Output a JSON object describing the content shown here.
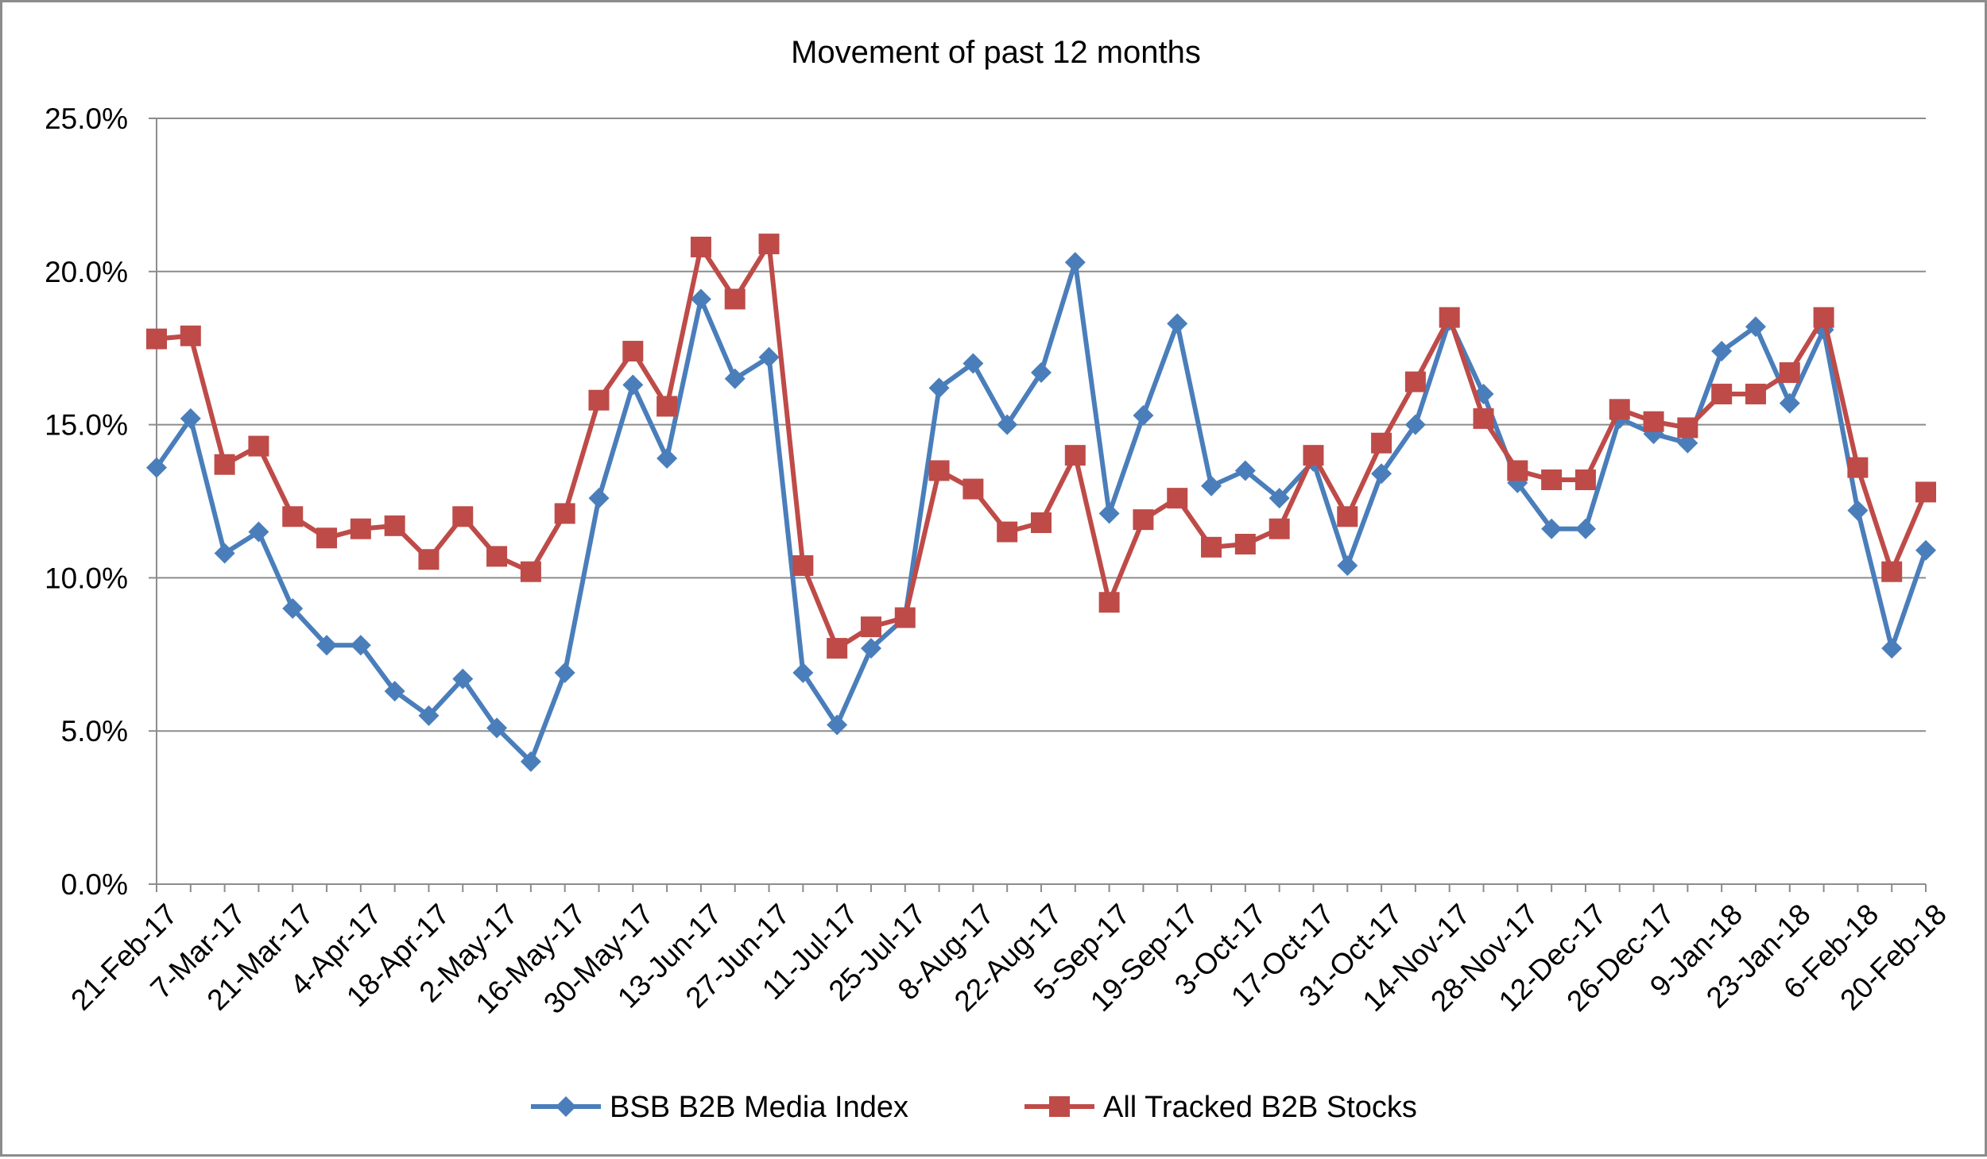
{
  "chart_data": {
    "type": "line",
    "title": "Movement of past 12 months",
    "xlabel": "",
    "ylabel": "",
    "ylim": [
      0,
      25
    ],
    "y_ticks": [
      "0.0%",
      "5.0%",
      "10.0%",
      "15.0%",
      "20.0%",
      "25.0%"
    ],
    "y_tick_values": [
      0,
      5,
      10,
      15,
      20,
      25
    ],
    "x_tick_labels": [
      "21-Feb-17",
      "7-Mar-17",
      "21-Mar-17",
      "4-Apr-17",
      "18-Apr-17",
      "2-May-17",
      "16-May-17",
      "30-May-17",
      "13-Jun-17",
      "27-Jun-17",
      "11-Jul-17",
      "25-Jul-17",
      "8-Aug-17",
      "22-Aug-17",
      "5-Sep-17",
      "19-Sep-17",
      "3-Oct-17",
      "17-Oct-17",
      "31-Oct-17",
      "14-Nov-17",
      "28-Nov-17",
      "12-Dec-17",
      "26-Dec-17",
      "9-Jan-18",
      "23-Jan-18",
      "6-Feb-18",
      "20-Feb-18"
    ],
    "grid": true,
    "legend_position": "bottom",
    "series": [
      {
        "name": "BSB B2B Media Index",
        "color": "#4a7ebb",
        "marker": "diamond",
        "values": [
          13.6,
          15.2,
          10.8,
          11.5,
          9.0,
          7.8,
          7.8,
          6.3,
          5.5,
          6.7,
          5.1,
          4.0,
          6.9,
          12.6,
          16.3,
          13.9,
          19.1,
          16.5,
          17.2,
          6.9,
          5.2,
          7.7,
          8.7,
          16.2,
          17.0,
          15.0,
          16.7,
          20.3,
          12.1,
          15.3,
          18.3,
          13.0,
          13.5,
          12.6,
          13.8,
          10.4,
          13.4,
          15.0,
          18.4,
          16.0,
          13.1,
          11.6,
          11.6,
          15.2,
          14.7,
          14.4,
          17.4,
          18.2,
          15.7,
          18.1,
          12.2,
          7.7,
          10.9
        ]
      },
      {
        "name": "All Tracked B2B Stocks",
        "color": "#be4b48",
        "marker": "square",
        "values": [
          17.8,
          17.9,
          13.7,
          14.3,
          12.0,
          11.3,
          11.6,
          11.7,
          10.6,
          12.0,
          10.7,
          10.2,
          12.1,
          15.8,
          17.4,
          15.6,
          20.8,
          19.1,
          20.9,
          10.4,
          7.7,
          8.4,
          8.7,
          13.5,
          12.9,
          11.5,
          11.8,
          14.0,
          9.2,
          11.9,
          12.6,
          11.0,
          11.1,
          11.6,
          14.0,
          12.0,
          14.4,
          16.4,
          18.5,
          15.2,
          13.5,
          13.2,
          13.2,
          15.5,
          15.1,
          14.9,
          16.0,
          16.0,
          16.7,
          18.5,
          13.6,
          10.2,
          12.8
        ]
      }
    ]
  }
}
